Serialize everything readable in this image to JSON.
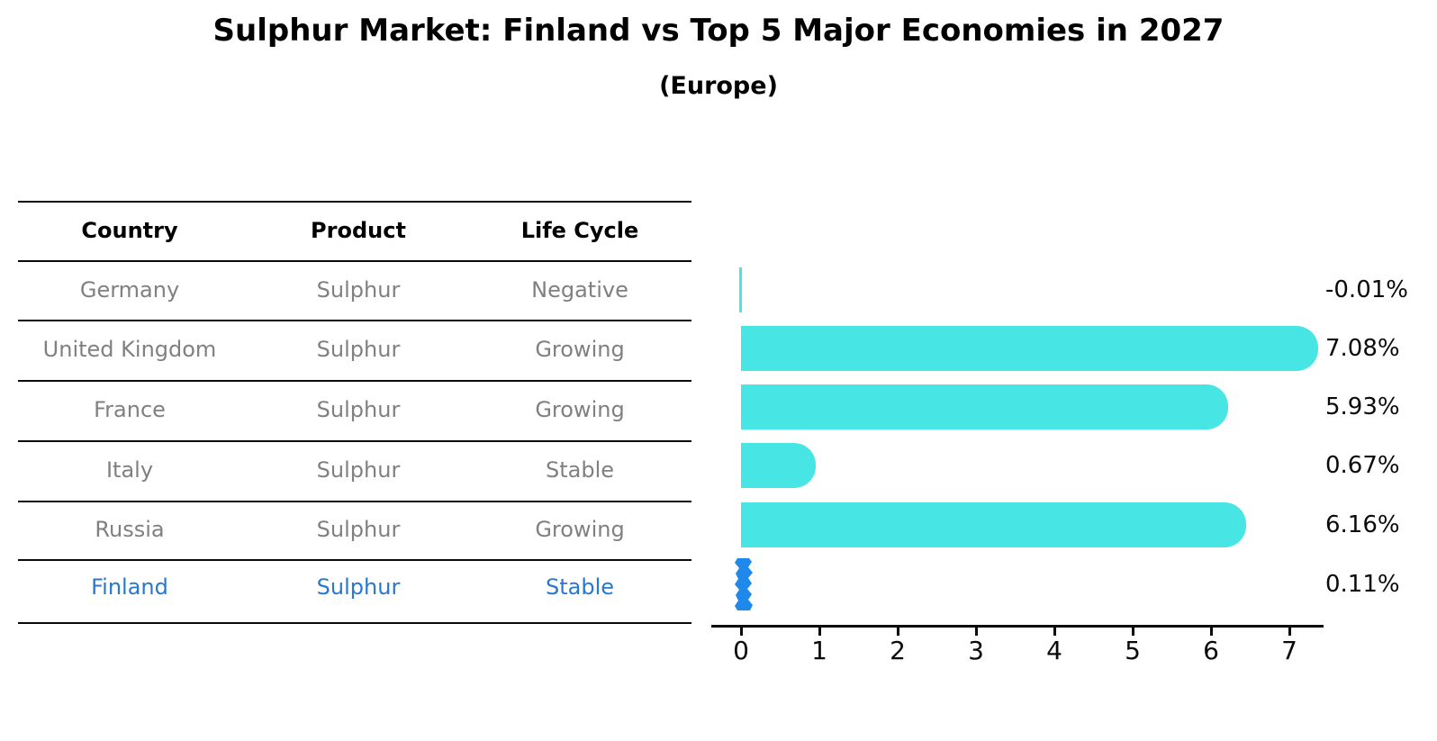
{
  "title": "Sulphur Market: Finland vs Top 5 Major Economies in 2027",
  "subtitle": "(Europe)",
  "colors": {
    "bar": "#48E5E5",
    "highlight_bar": "#1E88EB",
    "row_text": "#808080",
    "highlight_text": "#2878CE",
    "heading_text": "#000000",
    "line": "#0a0a0a"
  },
  "table": {
    "headers": [
      "Country",
      "Product",
      "Life Cycle"
    ],
    "rows": [
      {
        "country": "Germany",
        "product": "Sulphur",
        "life_cycle": "Negative",
        "highlight": false
      },
      {
        "country": "United Kingdom",
        "product": "Sulphur",
        "life_cycle": "Growing",
        "highlight": false
      },
      {
        "country": "France",
        "product": "Sulphur",
        "life_cycle": "Growing",
        "highlight": false
      },
      {
        "country": "Italy",
        "product": "Sulphur",
        "life_cycle": "Stable",
        "highlight": false
      },
      {
        "country": "Russia",
        "product": "Sulphur",
        "life_cycle": "Growing",
        "highlight": false
      },
      {
        "country": "Finland",
        "product": "Sulphur",
        "life_cycle": "Stable",
        "highlight": true
      }
    ]
  },
  "chart_data": {
    "type": "bar",
    "orientation": "horizontal",
    "title": "Sulphur Market: Finland vs Top 5 Major Economies in 2027",
    "subtitle": "(Europe)",
    "categories": [
      "Germany",
      "United Kingdom",
      "France",
      "Italy",
      "Russia",
      "Finland"
    ],
    "values": [
      -0.01,
      7.08,
      5.93,
      0.67,
      6.16,
      0.11
    ],
    "bar_labels": [
      "-0.01%",
      "7.08%",
      "5.93%",
      "0.67%",
      "6.16%",
      "0.11%"
    ],
    "highlight_index": 5,
    "xlabel": "",
    "ylabel": "",
    "xticks": [
      0,
      1,
      2,
      3,
      4,
      5,
      6,
      7
    ],
    "xlim": [
      -0.4,
      7.45
    ],
    "grid": false,
    "legend": false
  }
}
